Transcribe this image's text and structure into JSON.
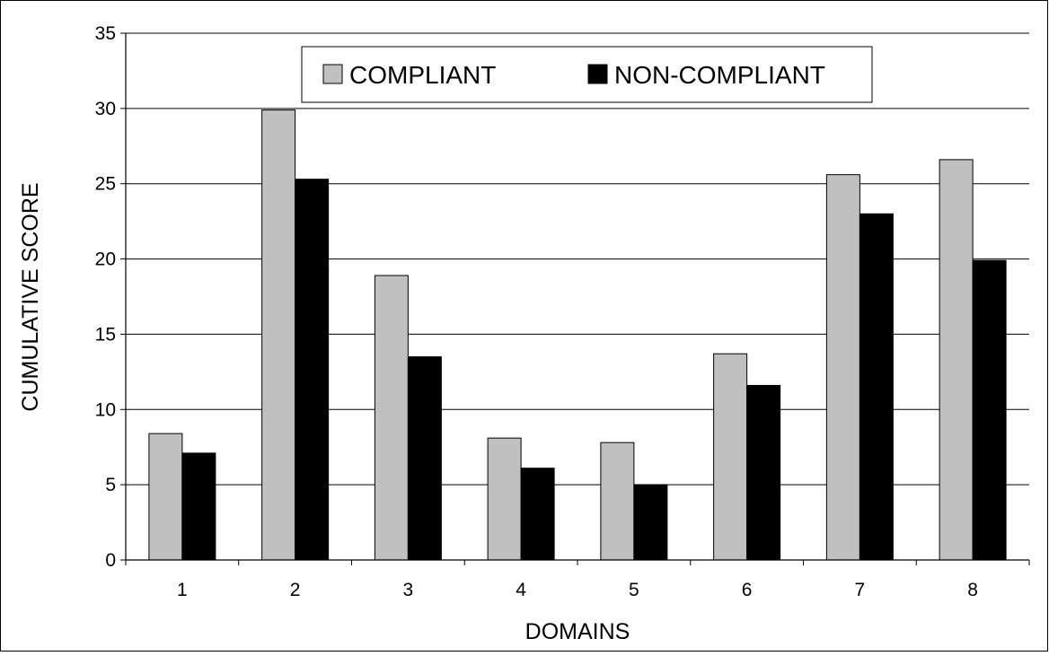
{
  "chart_data": {
    "type": "bar",
    "title": "",
    "xlabel": "DOMAINS",
    "ylabel": "CUMULATIVE SCORE",
    "categories": [
      "1",
      "2",
      "3",
      "4",
      "5",
      "6",
      "7",
      "8"
    ],
    "series": [
      {
        "name": "COMPLIANT",
        "color": "#c0c0c0",
        "values": [
          8.4,
          29.9,
          18.9,
          8.1,
          7.8,
          13.7,
          25.6,
          26.6
        ]
      },
      {
        "name": "NON-COMPLIANT",
        "color": "#000000",
        "values": [
          7.1,
          25.3,
          13.5,
          6.1,
          5.0,
          11.6,
          23.0,
          19.9
        ]
      }
    ],
    "ylim": [
      0,
      35
    ],
    "yticks": [
      "0",
      "5",
      "10",
      "15",
      "20",
      "25",
      "30",
      "35"
    ],
    "grid": true,
    "legend_position": "top-center"
  }
}
